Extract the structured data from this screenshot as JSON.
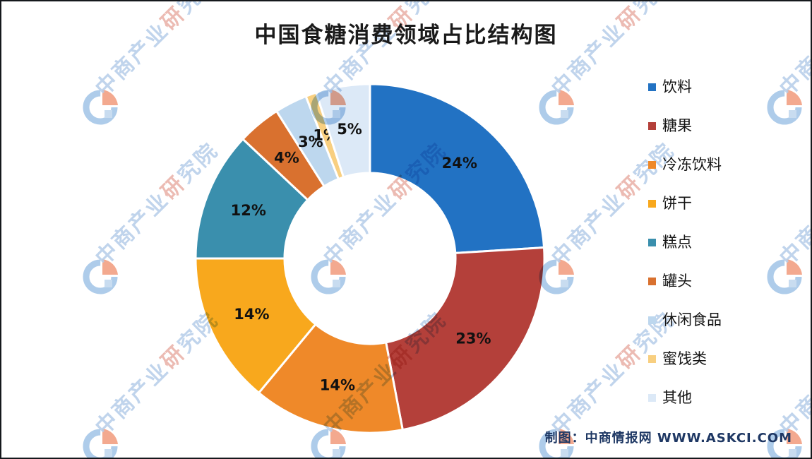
{
  "title": "中国食糖消费领域占比结构图",
  "credit": "制图：中商情报网 WWW.ASKCI.COM",
  "watermark": {
    "text": "中商产业研究院",
    "logo": "cn-research-crescent-logo"
  },
  "chart_data": {
    "type": "pie",
    "subtype": "donut",
    "title": "中国食糖消费领域占比结构图",
    "unit": "%",
    "categories": [
      "饮料",
      "糖果",
      "冷冻饮料",
      "饼干",
      "糕点",
      "罐头",
      "休闲食品",
      "蜜饯类",
      "其他"
    ],
    "values": [
      24,
      23,
      14,
      14,
      12,
      4,
      3,
      1,
      5
    ],
    "labels": [
      "24%",
      "23%",
      "14%",
      "14%",
      "12%",
      "4%",
      "3%",
      "1%",
      "5%"
    ],
    "colors": [
      "#2272c3",
      "#b4403a",
      "#ef8929",
      "#f8a81d",
      "#3a8fad",
      "#d9712f",
      "#bdd7ee",
      "#f8cf80",
      "#dce9f7"
    ],
    "legend_position": "right",
    "start_angle_deg": 0,
    "direction": "clockwise",
    "inner_radius_ratio": 0.49,
    "gridlines": false
  }
}
